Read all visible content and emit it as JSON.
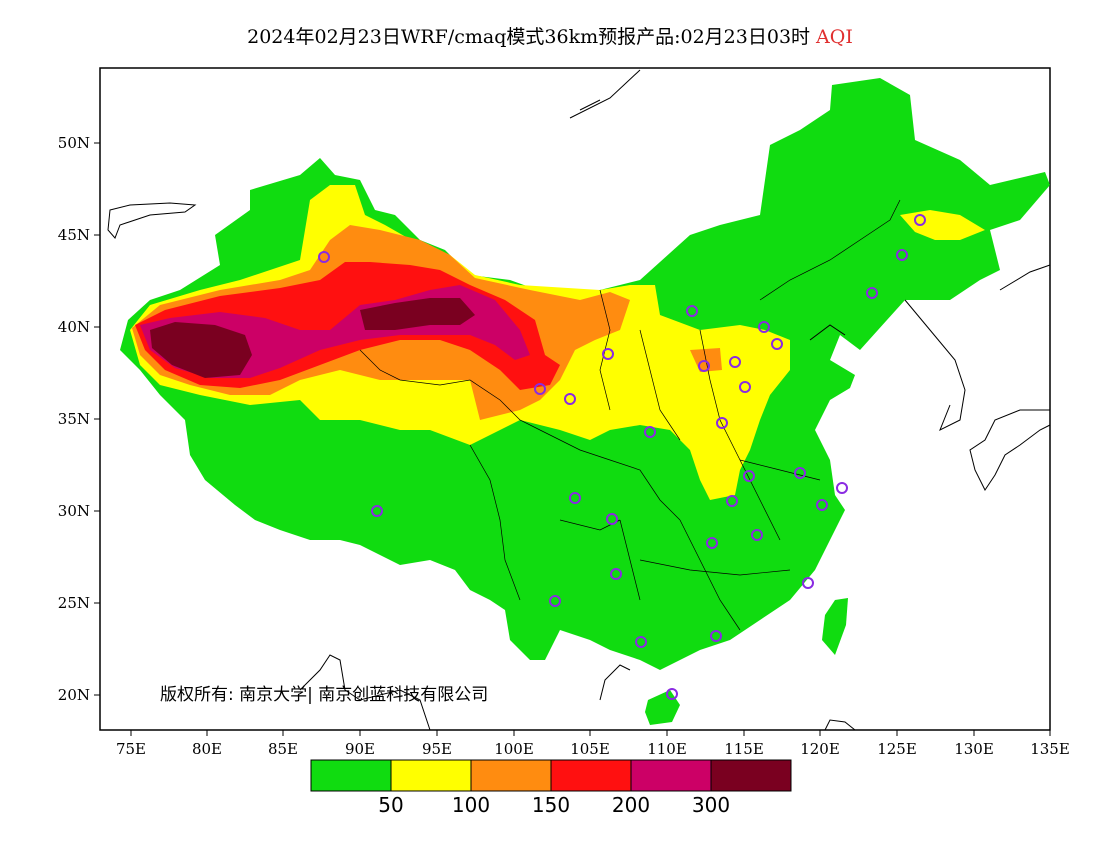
{
  "title": "2024年02月23日WRF/cmaq模式36km预报产品:02月23日03时",
  "title_tag": "AQI",
  "copyright": "版权所有: 南京大学| 南京创蓝科技有限公司",
  "y_ticks": [
    "50N",
    "45N",
    "40N",
    "35N",
    "30N",
    "25N",
    "20N"
  ],
  "x_ticks": [
    "75E",
    "80E",
    "85E",
    "90E",
    "95E",
    "100E",
    "105E",
    "110E",
    "115E",
    "120E",
    "125E",
    "130E",
    "135E"
  ],
  "legend": {
    "colors": [
      "#10dc10",
      "#ffff00",
      "#ff8c10",
      "#ff1010",
      "#cc0066",
      "#7a0020"
    ],
    "values": [
      "50",
      "100",
      "150",
      "200",
      "300"
    ]
  },
  "colors": {
    "good": "#10dc10",
    "moderate": "#ffff00",
    "usg": "#ff8c10",
    "unhealthy": "#ff1010",
    "very_unhealthy": "#cc0066",
    "hazardous": "#7a0020",
    "station": "#8a2be2",
    "title_tag": "#e03030"
  }
}
